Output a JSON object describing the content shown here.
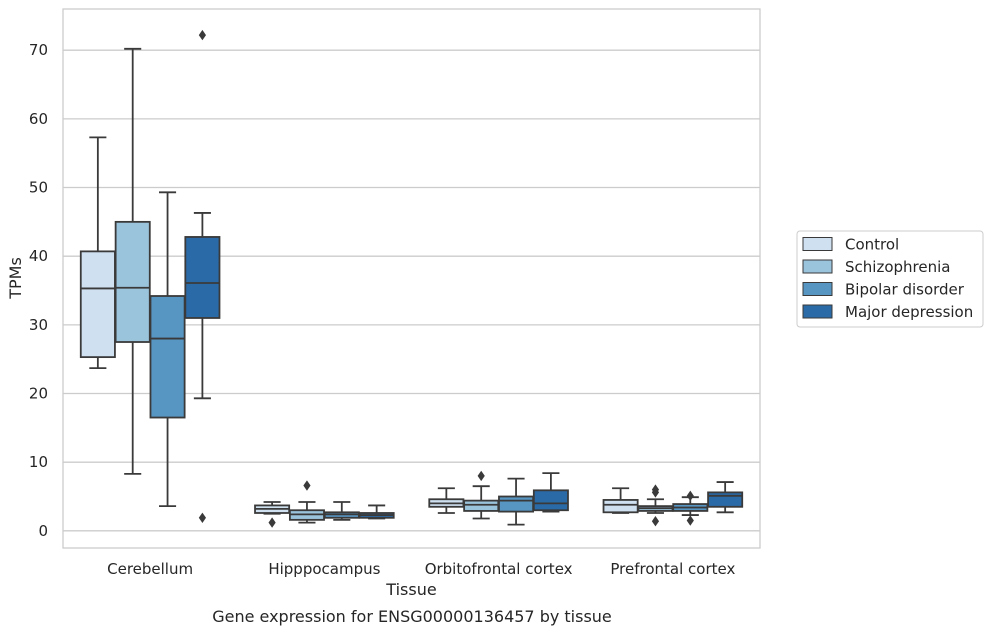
{
  "chart_data": {
    "type": "box",
    "xlabel": "Tissue",
    "ylabel": "TPMs",
    "caption": "Gene expression for ENSG00000136457 by tissue",
    "ylim": [
      -2.5,
      76
    ],
    "yticks": [
      0,
      10,
      20,
      30,
      40,
      50,
      60,
      70
    ],
    "grid": "horizontal",
    "legend_position": "right",
    "categories": [
      "Cerebellum",
      "Hipppocampus",
      "Orbitofrontal cortex",
      "Prefrontal cortex"
    ],
    "series": [
      {
        "name": "Control",
        "color": "#cfe0f0",
        "boxes": [
          {
            "whislo": 23.7,
            "q1": 25.3,
            "med": 35.3,
            "q3": 40.7,
            "whishi": 57.3,
            "fliers": []
          },
          {
            "whislo": 2.5,
            "q1": 2.6,
            "med": 3.2,
            "q3": 3.7,
            "whishi": 4.2,
            "fliers": [
              1.2
            ]
          },
          {
            "whislo": 2.6,
            "q1": 3.5,
            "med": 4.0,
            "q3": 4.6,
            "whishi": 6.2,
            "fliers": []
          },
          {
            "whislo": 2.6,
            "q1": 2.7,
            "med": 3.8,
            "q3": 4.5,
            "whishi": 6.2,
            "fliers": []
          }
        ]
      },
      {
        "name": "Schizophrenia",
        "color": "#9ac3dc",
        "boxes": [
          {
            "whislo": 8.3,
            "q1": 27.5,
            "med": 35.4,
            "q3": 45.0,
            "whishi": 70.2,
            "fliers": []
          },
          {
            "whislo": 1.2,
            "q1": 1.6,
            "med": 2.4,
            "q3": 3.0,
            "whishi": 4.2,
            "fliers": [
              6.6
            ]
          },
          {
            "whislo": 1.8,
            "q1": 2.9,
            "med": 3.8,
            "q3": 4.4,
            "whishi": 6.5,
            "fliers": [
              8.0
            ]
          },
          {
            "whislo": 2.6,
            "q1": 2.9,
            "med": 3.3,
            "q3": 3.6,
            "whishi": 4.6,
            "fliers": [
              1.4,
              5.6,
              6.0
            ]
          }
        ]
      },
      {
        "name": "Bipolar disorder",
        "color": "#5795c2",
        "boxes": [
          {
            "whislo": 3.6,
            "q1": 16.5,
            "med": 28.0,
            "q3": 34.2,
            "whishi": 49.3,
            "fliers": []
          },
          {
            "whislo": 1.6,
            "q1": 1.9,
            "med": 2.4,
            "q3": 2.7,
            "whishi": 4.2,
            "fliers": []
          },
          {
            "whislo": 0.9,
            "q1": 2.8,
            "med": 4.4,
            "q3": 5.0,
            "whishi": 7.6,
            "fliers": []
          },
          {
            "whislo": 2.3,
            "q1": 2.9,
            "med": 3.4,
            "q3": 3.9,
            "whishi": 4.9,
            "fliers": [
              1.5,
              5.1
            ]
          }
        ]
      },
      {
        "name": "Major depression",
        "color": "#2a6aa7",
        "boxes": [
          {
            "whislo": 19.3,
            "q1": 31.0,
            "med": 36.1,
            "q3": 42.8,
            "whishi": 46.3,
            "fliers": [
              72.2,
              1.9
            ]
          },
          {
            "whislo": 1.8,
            "q1": 1.9,
            "med": 2.3,
            "q3": 2.6,
            "whishi": 3.7,
            "fliers": []
          },
          {
            "whislo": 2.8,
            "q1": 3.0,
            "med": 4.0,
            "q3": 5.9,
            "whishi": 8.4,
            "fliers": []
          },
          {
            "whislo": 2.7,
            "q1": 3.5,
            "med": 5.1,
            "q3": 5.6,
            "whishi": 7.1,
            "fliers": []
          }
        ]
      }
    ]
  }
}
